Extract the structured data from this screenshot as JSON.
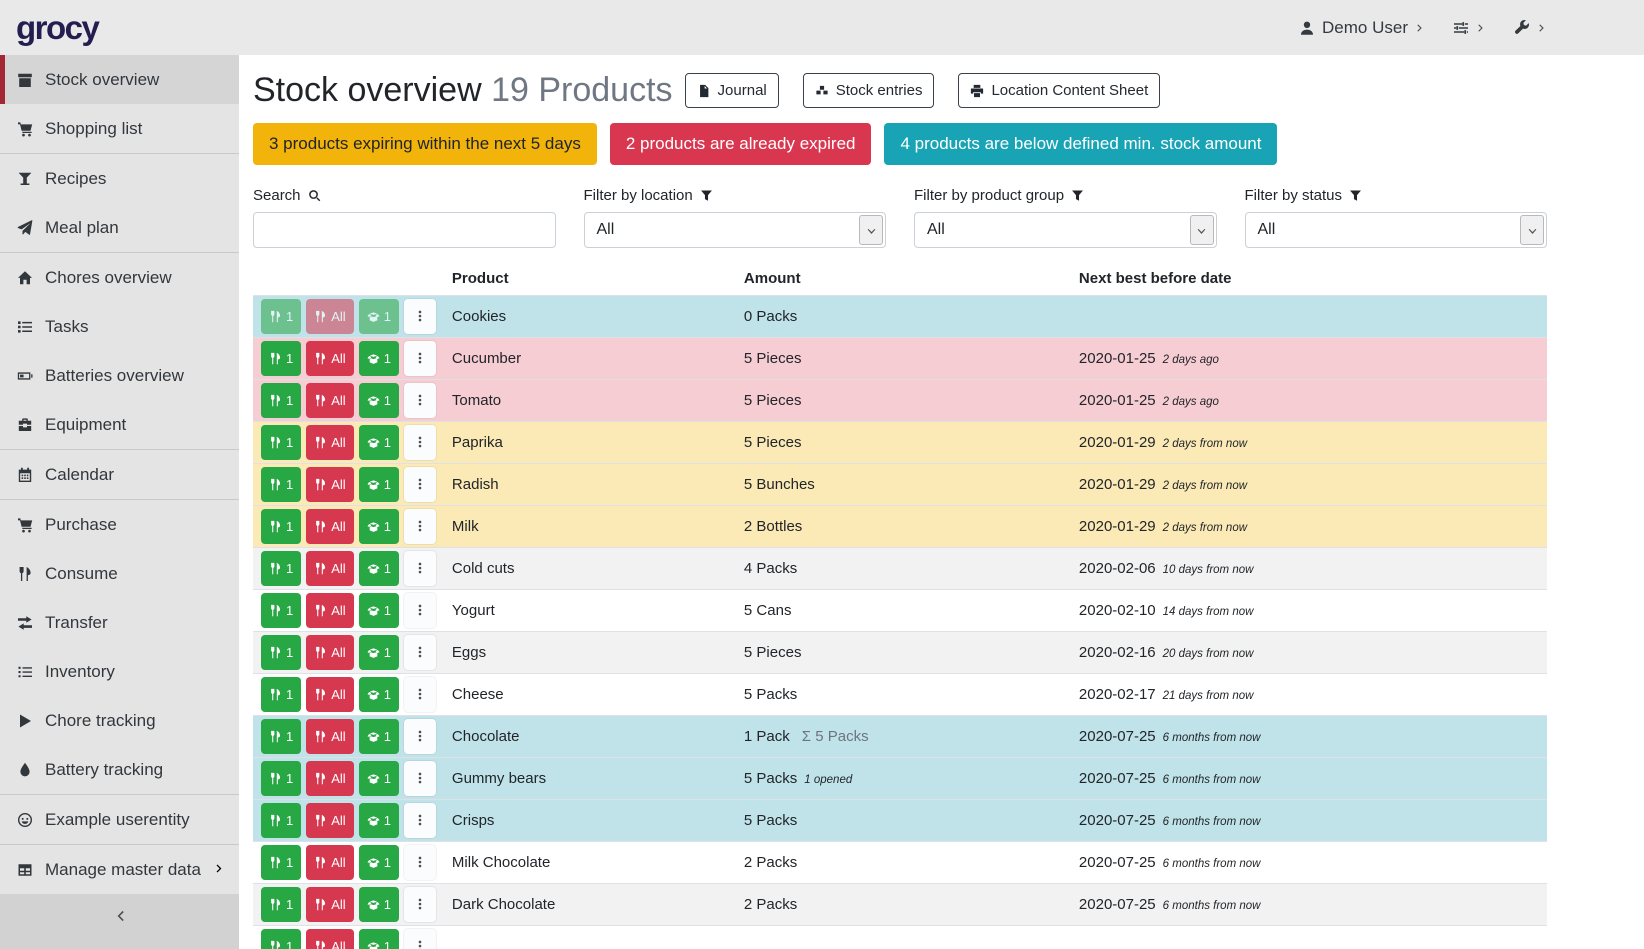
{
  "navbar": {
    "logo": "grocy",
    "user_label": "Demo User",
    "user_icon": "user",
    "settings_icon": "sliders",
    "admin_icon": "wrench",
    "chevron_icon": "chevron-right"
  },
  "sidebar": {
    "collapse_icon": "chevron-left",
    "groups": [
      {
        "items": [
          {
            "label": "Stock overview",
            "icon": "box",
            "active": true
          },
          {
            "label": "Shopping list",
            "icon": "cart"
          }
        ]
      },
      {
        "items": [
          {
            "label": "Recipes",
            "icon": "cocktail"
          },
          {
            "label": "Meal plan",
            "icon": "paper-plane"
          }
        ]
      },
      {
        "items": [
          {
            "label": "Chores overview",
            "icon": "home"
          },
          {
            "label": "Tasks",
            "icon": "tasks"
          },
          {
            "label": "Batteries overview",
            "icon": "battery"
          },
          {
            "label": "Equipment",
            "icon": "toolbox"
          }
        ]
      },
      {
        "items": [
          {
            "label": "Calendar",
            "icon": "calendar"
          }
        ]
      },
      {
        "items": [
          {
            "label": "Purchase",
            "icon": "cart"
          },
          {
            "label": "Consume",
            "icon": "utensils"
          },
          {
            "label": "Transfer",
            "icon": "exchange"
          },
          {
            "label": "Inventory",
            "icon": "list"
          },
          {
            "label": "Chore tracking",
            "icon": "play"
          },
          {
            "label": "Battery tracking",
            "icon": "drop"
          }
        ]
      },
      {
        "items": [
          {
            "label": "Example userentity",
            "icon": "smile"
          }
        ]
      },
      {
        "items": [
          {
            "label": "Manage master data",
            "icon": "table",
            "chevron": "chevron-right"
          }
        ]
      }
    ]
  },
  "header": {
    "title": "Stock overview",
    "subtitle": "19 Products",
    "buttons": [
      {
        "label": "Journal",
        "icon": "file"
      },
      {
        "label": "Stock entries",
        "icon": "boxes"
      },
      {
        "label": "Location Content Sheet",
        "icon": "print"
      }
    ]
  },
  "alerts": [
    {
      "id": "expiring-soon",
      "text": "3 products expiring within the next 5 days",
      "bg": "#f2b30b",
      "fg": "#212529"
    },
    {
      "id": "expired",
      "text": "2 products are already expired",
      "bg": "#d8374f",
      "fg": "#ffffff"
    },
    {
      "id": "below-min-stock",
      "text": "4 products are below defined min. stock amount",
      "bg": "#18a4b4",
      "fg": "#ffffff"
    }
  ],
  "filters": {
    "search": {
      "label": "Search",
      "icon": "search",
      "value": "",
      "placeholder": ""
    },
    "selects": [
      {
        "id": "location",
        "label": "Filter by location",
        "icon": "filter",
        "value": "All"
      },
      {
        "id": "product-group",
        "label": "Filter by product group",
        "icon": "filter",
        "value": "All"
      },
      {
        "id": "status",
        "label": "Filter by status",
        "icon": "filter",
        "value": "All"
      }
    ]
  },
  "table": {
    "columns": [
      {
        "label": "",
        "sortable": false
      },
      {
        "label": "Product",
        "sortable": true
      },
      {
        "label": "Amount",
        "sortable": true
      },
      {
        "label": "Next best before date",
        "sortable": true
      }
    ],
    "row_buttons": {
      "consume_one": "1",
      "consume_one_icon": "utensils",
      "consume_all": "All",
      "consume_all_icon": "utensils",
      "open_one": "1",
      "open_one_icon": "box-open",
      "menu_icon": "ellipsis-v"
    },
    "rows": [
      {
        "product": "Cookies",
        "amount": "0 Packs",
        "date": "",
        "date_note": "",
        "status": "info",
        "disabled": true
      },
      {
        "product": "Cucumber",
        "amount": "5 Pieces",
        "date": "2020-01-25",
        "date_note": "2 days ago",
        "status": "danger"
      },
      {
        "product": "Tomato",
        "amount": "5 Pieces",
        "date": "2020-01-25",
        "date_note": "2 days ago",
        "status": "danger"
      },
      {
        "product": "Paprika",
        "amount": "5 Pieces",
        "date": "2020-01-29",
        "date_note": "2 days from now",
        "status": "warning"
      },
      {
        "product": "Radish",
        "amount": "5 Bunches",
        "date": "2020-01-29",
        "date_note": "2 days from now",
        "status": "warning"
      },
      {
        "product": "Milk",
        "amount": "2 Bottles",
        "date": "2020-01-29",
        "date_note": "2 days from now",
        "status": "warning"
      },
      {
        "product": "Cold cuts",
        "amount": "4 Packs",
        "date": "2020-02-06",
        "date_note": "10 days from now",
        "status": "stripe"
      },
      {
        "product": "Yogurt",
        "amount": "5 Cans",
        "date": "2020-02-10",
        "date_note": "14 days from now",
        "status": "plain"
      },
      {
        "product": "Eggs",
        "amount": "5 Pieces",
        "date": "2020-02-16",
        "date_note": "20 days from now",
        "status": "stripe"
      },
      {
        "product": "Cheese",
        "amount": "5 Packs",
        "date": "2020-02-17",
        "date_note": "21 days from now",
        "status": "plain"
      },
      {
        "product": "Chocolate",
        "amount": "1 Pack",
        "amount_sum": "Σ 5 Packs",
        "date": "2020-07-25",
        "date_note": "6 months from now",
        "status": "info"
      },
      {
        "product": "Gummy bears",
        "amount": "5 Packs",
        "amount_opened": "1 opened",
        "date": "2020-07-25",
        "date_note": "6 months from now",
        "status": "info"
      },
      {
        "product": "Crisps",
        "amount": "5 Packs",
        "date": "2020-07-25",
        "date_note": "6 months from now",
        "status": "info"
      },
      {
        "product": "Milk Chocolate",
        "amount": "2 Packs",
        "date": "2020-07-25",
        "date_note": "6 months from now",
        "status": "plain"
      },
      {
        "product": "Dark Chocolate",
        "amount": "2 Packs",
        "date": "2020-07-25",
        "date_note": "6 months from now",
        "status": "stripe"
      },
      {
        "partial": true,
        "product": "",
        "amount": "",
        "date": "",
        "date_note": "",
        "status": "plain"
      }
    ]
  },
  "colors": {
    "btn_green": "#28a745",
    "btn_red": "#d6394f",
    "row_info": "#c0e3ea",
    "row_danger": "#f7cdd4",
    "row_warning": "#fbe9b6",
    "row_stripe": "#f2f2f2",
    "active_border": "#a42833"
  }
}
